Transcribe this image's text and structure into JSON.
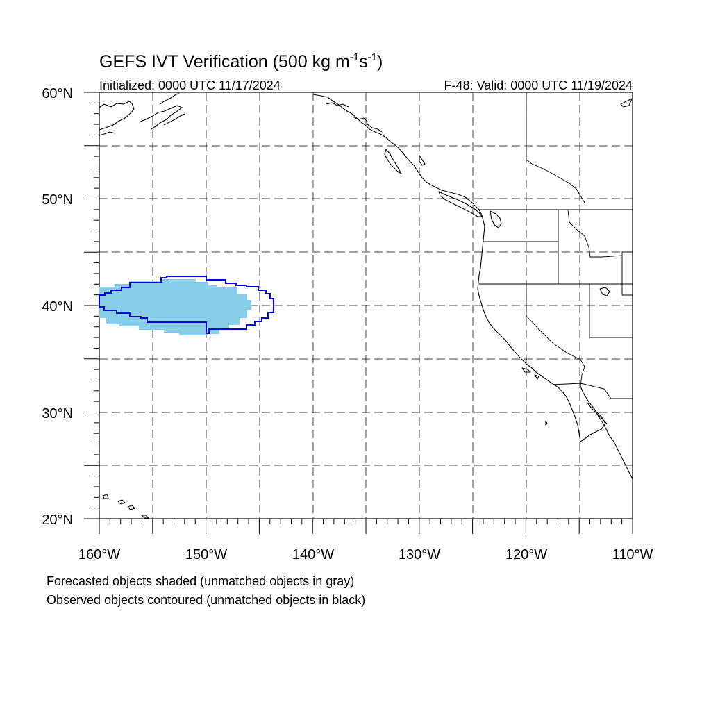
{
  "title": {
    "main": "GEFS IVT Verification (500 kg m",
    "sup1": "-1",
    "mid": "s",
    "sup2": "-1",
    "close": ")"
  },
  "init_label": "Initialized: 0000 UTC 11/17/2024",
  "valid_label": "F-48: Valid: 0000 UTC 11/19/2024",
  "axes": {
    "lat_labels": [
      "60°N",
      "50°N",
      "40°N",
      "30°N",
      "20°N"
    ],
    "lon_labels": [
      "160°W",
      "150°W",
      "140°W",
      "130°W",
      "120°W",
      "110°W"
    ],
    "lat_range": [
      20,
      60
    ],
    "lon_range": [
      -160,
      -110
    ],
    "grid": true
  },
  "legend": {
    "forecast": "Forecasted objects shaded (unmatched objects in gray)",
    "observed": "Observed objects contoured (unmatched objects in black)"
  },
  "colors": {
    "forecast_fill": "#87ceeb",
    "observed_contour": "#0000ee"
  }
}
